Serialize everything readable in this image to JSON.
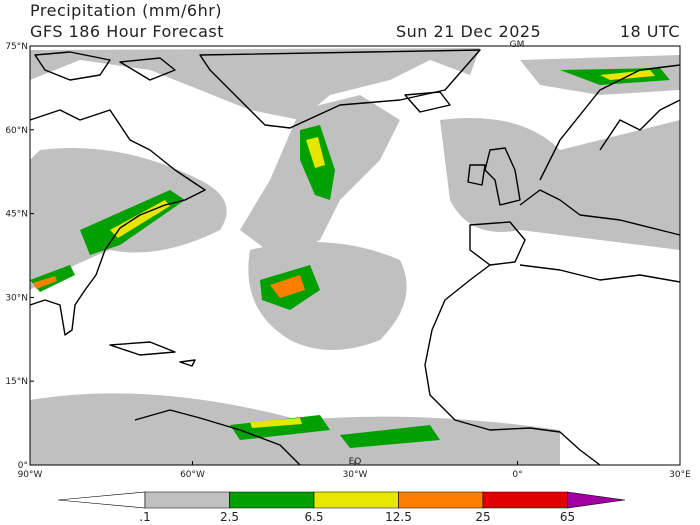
{
  "header": {
    "title": "Precipitation (mm/6hr)",
    "subtitle": "GFS 186 Hour Forecast",
    "date": "Sun 21 Dec 2025",
    "time": "18 UTC"
  },
  "map": {
    "lat_labels": [
      "75°N",
      "60°N",
      "45°N",
      "30°N",
      "15°N",
      "0°"
    ],
    "lon_labels": [
      "90°W",
      "60°W",
      "30°W",
      "0°",
      "30°E"
    ],
    "markers": [
      "GM",
      "EQ"
    ]
  },
  "legend": {
    "labels": [
      ".1",
      "2.5",
      "6.5",
      "12.5",
      "25",
      "65"
    ],
    "colors": [
      "#ffffff",
      "#c0c0c0",
      "#00a000",
      "#e6e600",
      "#ff8000",
      "#e00000",
      "#a000a0"
    ]
  }
}
